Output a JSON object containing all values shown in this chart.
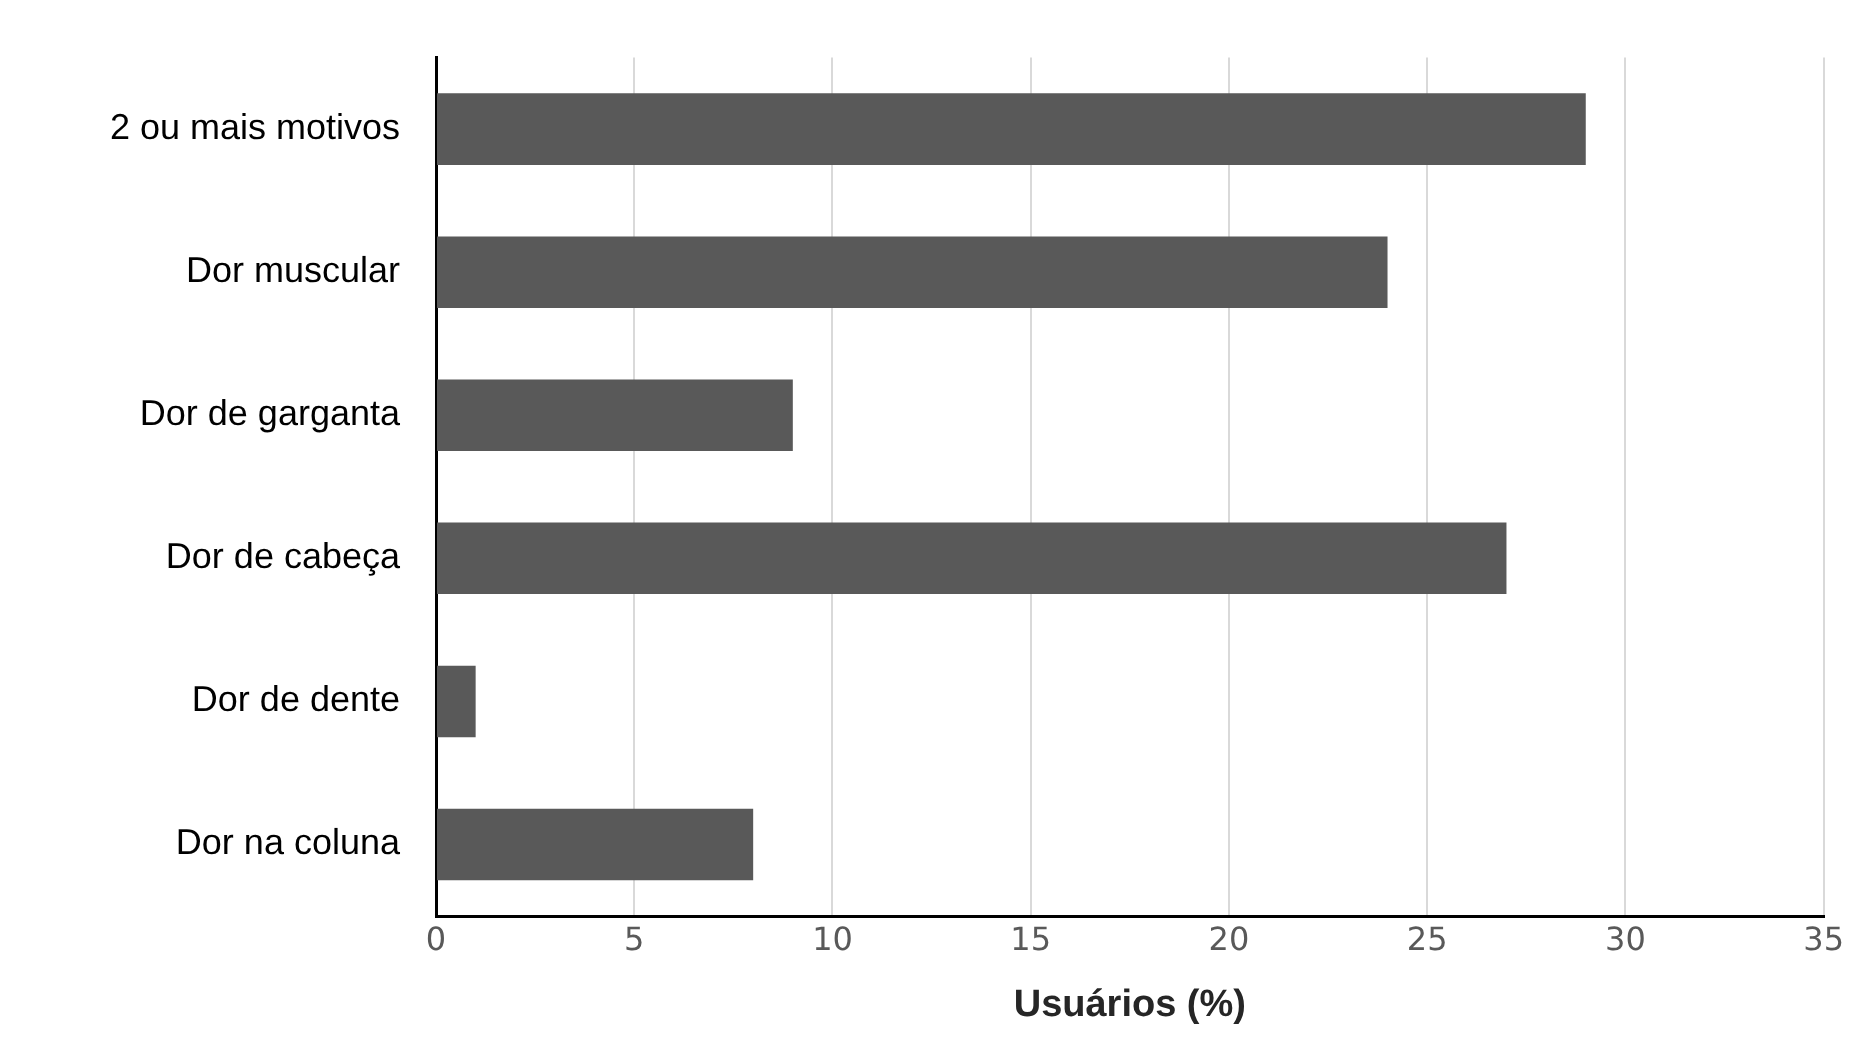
{
  "chart_data": {
    "type": "bar",
    "orientation": "horizontal",
    "xlabel": "Usuários (%)",
    "categories": [
      "2 ou mais motivos",
      "Dor muscular",
      "Dor de garganta",
      "Dor de cabeça",
      "Dor de dente",
      "Dor na coluna"
    ],
    "values": [
      29,
      24,
      9,
      27,
      1,
      8
    ],
    "color": "#595959",
    "xlim": [
      0,
      35
    ],
    "xticks": [
      0,
      5,
      10,
      15,
      20,
      25,
      30,
      35
    ],
    "grid": "x",
    "legend": false
  }
}
